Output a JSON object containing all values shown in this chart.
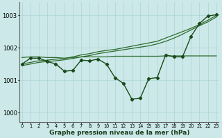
{
  "x": [
    0,
    1,
    2,
    3,
    4,
    5,
    6,
    7,
    8,
    9,
    10,
    11,
    12,
    13,
    14,
    15,
    16,
    17,
    18,
    19,
    20,
    21,
    22,
    23
  ],
  "line_flat": [
    1001.7,
    1001.72,
    1001.72,
    1001.7,
    1001.7,
    1001.68,
    1001.7,
    1001.72,
    1001.72,
    1001.72,
    1001.72,
    1001.74,
    1001.74,
    1001.74,
    1001.74,
    1001.74,
    1001.74,
    1001.75,
    1001.75,
    1001.75,
    1001.75,
    1001.75,
    1001.75,
    1001.75
  ],
  "line_rise": [
    1001.5,
    1001.55,
    1001.6,
    1001.62,
    1001.65,
    1001.67,
    1001.72,
    1001.78,
    1001.82,
    1001.88,
    1001.92,
    1001.95,
    1002.0,
    1002.05,
    1002.1,
    1002.15,
    1002.2,
    1002.3,
    1002.4,
    1002.5,
    1002.6,
    1002.72,
    1002.85,
    1003.0
  ],
  "line_rise2": [
    1001.45,
    1001.5,
    1001.55,
    1001.58,
    1001.6,
    1001.63,
    1001.67,
    1001.72,
    1001.76,
    1001.82,
    1001.86,
    1001.9,
    1001.94,
    1001.98,
    1002.02,
    1002.06,
    1002.12,
    1002.2,
    1002.3,
    1002.42,
    1002.55,
    1002.68,
    1002.8,
    1002.95
  ],
  "line_volatile": [
    1001.5,
    1001.68,
    1001.68,
    1001.58,
    1001.5,
    1001.28,
    1001.3,
    1001.62,
    1001.6,
    1001.65,
    1001.5,
    1001.08,
    1000.9,
    1000.42,
    1000.45,
    1001.05,
    1001.08,
    1001.78,
    1001.72,
    1001.72,
    1002.35,
    1002.75,
    1002.98,
    1003.02
  ],
  "bg_color": "#cce8e8",
  "line_color_med": "#2d6b2d",
  "line_color_dark": "#1a4a1a",
  "grid_color": "#aad4d4",
  "ylabel_ticks": [
    1000,
    1001,
    1002,
    1003
  ],
  "xlabel": "Graphe pression niveau de la mer (hPa)",
  "ylim": [
    999.7,
    1003.4
  ],
  "xlim": [
    -0.3,
    23.3
  ]
}
